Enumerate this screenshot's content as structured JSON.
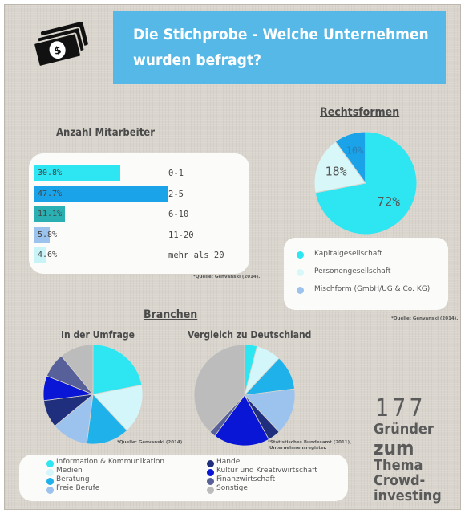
{
  "header": {
    "title_line1": "Die Stichprobe - Welche Unternehmen",
    "title_line2": "wurden befragt?",
    "icon": "money-bills-icon"
  },
  "colors": {
    "banner": "#55b8e6",
    "cyan": "#2ee6f2",
    "light_cyan": "#c9f4f7",
    "blue": "#1aa3e8",
    "teal": "#2ab0b2"
  },
  "headcount": {
    "heading": "Anzahl Mitarbeiter",
    "source": "*Quelle: Genvanski (2014)."
  },
  "legal_forms": {
    "heading": "Rechtsformen",
    "legend": [
      {
        "label": "Kapitalgesellschaft",
        "color": "#2ee6f2"
      },
      {
        "label": "Personengesellschaft",
        "color": "#d8f7f9"
      },
      {
        "label": "Mischform (GmbH/UG & Co. KG)",
        "color": "#9cc3ee"
      }
    ],
    "source": "*Quelle: Genvanski (2014)."
  },
  "industries": {
    "heading": "Branchen",
    "survey_heading": "In der Umfrage",
    "germany_heading": "Vergleich zu Deutschland",
    "survey_source": "*Quelle: Genvanski (2014).",
    "germany_source_line1": "*Statistisches Bundesamt (2011),",
    "germany_source_line2": "Unternehmensregister.",
    "legend": [
      {
        "label": "Information & Kommunikation",
        "color": "#2ee6f2"
      },
      {
        "label": "Medien",
        "color": "#d2f6f9"
      },
      {
        "label": "Beratung",
        "color": "#1fb1ea"
      },
      {
        "label": "Freie Berufe",
        "color": "#9cc3ee"
      },
      {
        "label": "Handel",
        "color": "#1f2f7e"
      },
      {
        "label": "Kultur und Kreativwirtschaft",
        "color": "#0a16d6"
      },
      {
        "label": "Finanzwirtschaft",
        "color": "#58609a"
      },
      {
        "label": "Sonstige",
        "color": "#bcbcbc"
      }
    ]
  },
  "side_text": {
    "number": "177",
    "line1": "Gründer",
    "line2": "zum",
    "line3": "Thema",
    "line4": "Crowd-",
    "line5": "investing"
  },
  "chart_data": [
    {
      "type": "bar",
      "orientation": "horizontal",
      "title": "Anzahl Mitarbeiter",
      "categories": [
        "0-1",
        "2-5",
        "6-10",
        "11-20",
        "mehr als 20"
      ],
      "values": [
        30.8,
        47.7,
        11.1,
        5.8,
        4.6
      ],
      "value_labels": [
        "30.8%",
        "47.7%",
        "11.1%",
        "5.8%",
        "4.6%"
      ],
      "colors": [
        "#2ee6f2",
        "#1aa3e8",
        "#2ab0b2",
        "#9cc3ee",
        "#c9f4f7"
      ]
    },
    {
      "type": "pie",
      "title": "Rechtsformen",
      "labels": [
        "Kapitalgesellschaft",
        "Personengesellschaft",
        "Mischform (GmbH/UG & Co. KG)"
      ],
      "values": [
        72,
        18,
        10
      ],
      "value_labels": [
        "72%",
        "18%",
        "10%"
      ],
      "colors": [
        "#2ee6f2",
        "#d8f7f9",
        "#1aa3e8"
      ]
    },
    {
      "type": "pie",
      "title": "In der Umfrage",
      "labels": [
        "Information & Kommunikation",
        "Medien",
        "Beratung",
        "Freie Berufe",
        "Handel",
        "Kultur und Kreativwirtschaft",
        "Finanzwirtschaft",
        "Sonstige"
      ],
      "values": [
        22,
        16,
        14,
        12,
        9,
        8,
        8,
        11
      ],
      "colors": [
        "#2ee6f2",
        "#d2f6f9",
        "#1fb1ea",
        "#9cc3ee",
        "#1f2f7e",
        "#0a16d6",
        "#58609a",
        "#bcbcbc"
      ]
    },
    {
      "type": "pie",
      "title": "Vergleich zu Deutschland",
      "labels": [
        "Information & Kommunikation",
        "Medien",
        "Beratung",
        "Freie Berufe",
        "Handel",
        "Kultur und Kreativwirtschaft",
        "Finanzwirtschaft",
        "Sonstige"
      ],
      "values": [
        4,
        8,
        11,
        15,
        4,
        18,
        2,
        38
      ],
      "colors": [
        "#2ee6f2",
        "#d2f6f9",
        "#1fb1ea",
        "#9cc3ee",
        "#1f2f7e",
        "#0a16d6",
        "#58609a",
        "#bcbcbc"
      ]
    }
  ]
}
